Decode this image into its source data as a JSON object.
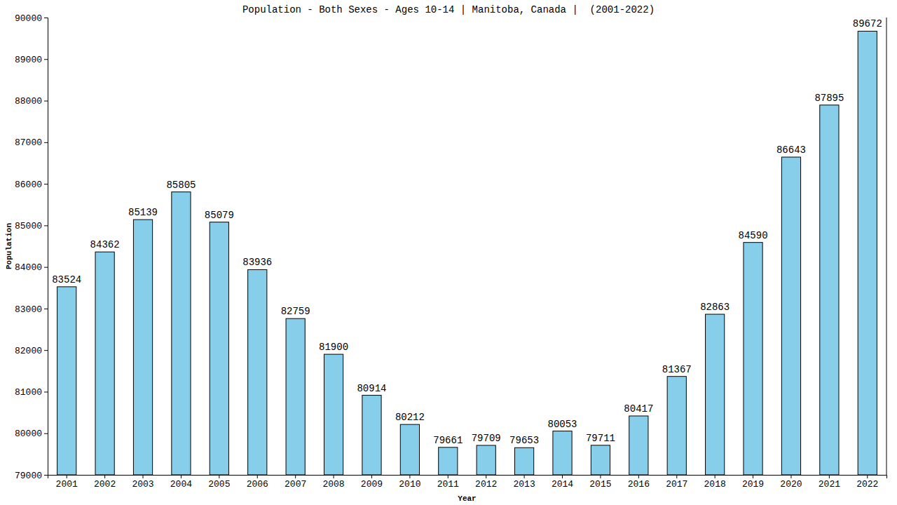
{
  "chart_data": {
    "type": "bar",
    "title": "Population - Both Sexes - Ages 10-14 | Manitoba, Canada |  (2001-2022)",
    "x_label": "Year",
    "y_label": "Population",
    "categories": [
      "2001",
      "2002",
      "2003",
      "2004",
      "2005",
      "2006",
      "2007",
      "2008",
      "2009",
      "2010",
      "2011",
      "2012",
      "2013",
      "2014",
      "2015",
      "2016",
      "2017",
      "2018",
      "2019",
      "2020",
      "2021",
      "2022"
    ],
    "values": [
      83524,
      84362,
      85139,
      85805,
      85079,
      83936,
      82759,
      81900,
      80914,
      80212,
      79661,
      79709,
      79653,
      80053,
      79711,
      80417,
      81367,
      82863,
      84590,
      86643,
      87895,
      89672
    ],
    "color": "#87ceeb",
    "ylim": [
      79000,
      90000
    ],
    "yticks": [
      79000,
      80000,
      81000,
      82000,
      83000,
      84000,
      85000,
      86000,
      87000,
      88000,
      89000,
      90000
    ],
    "grid": false,
    "data_labels": true
  }
}
